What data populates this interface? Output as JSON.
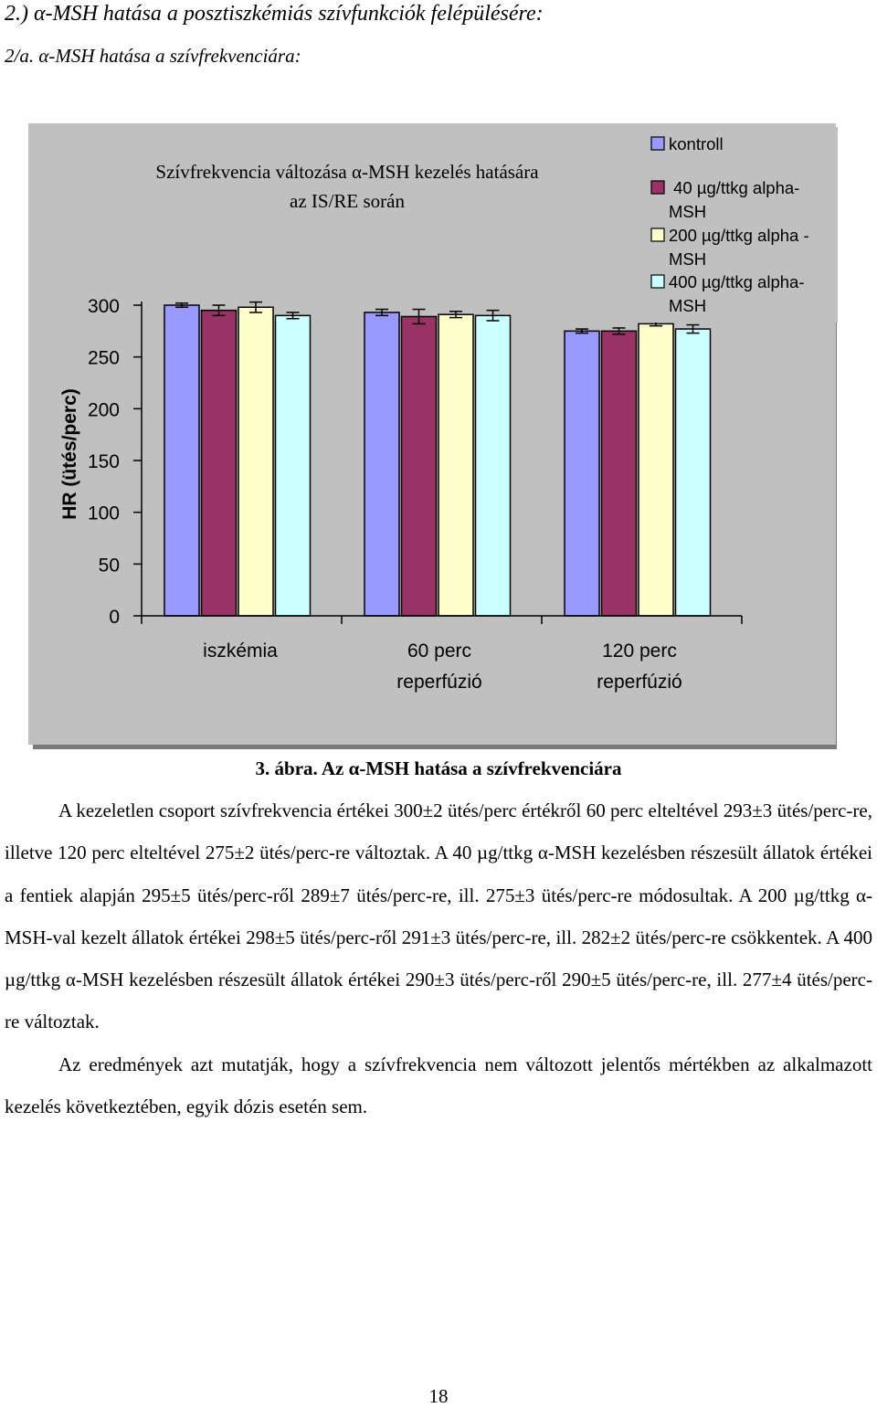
{
  "heading": "2.) α-MSH hatása a posztiszkémiás szívfunkciók felépülésére:",
  "subheading": "2/a. α-MSH hatása a szívfrekvenciára:",
  "chart_data": {
    "type": "bar",
    "title_line1": "Szívfrekvencia változása α-MSH kezelés hatására",
    "title_line2": "az IS/RE során",
    "ylabel": "HR (ütés/perc)",
    "xlabel": "",
    "ylim": [
      0,
      300
    ],
    "yticks": [
      0,
      50,
      100,
      150,
      200,
      250,
      300
    ],
    "categories": [
      [
        "iszkémia"
      ],
      [
        "60 perc",
        "reperfúzió"
      ],
      [
        "120 perc",
        "reperfúzió"
      ]
    ],
    "legend_position": "top-right",
    "grid": false,
    "series": [
      {
        "name_lines": [
          "kontroll"
        ],
        "color": "#9999FF",
        "values": [
          300,
          293,
          275
        ],
        "errors": [
          2,
          3,
          2
        ]
      },
      {
        "name_lines": [
          " 40 µg/ttkg alpha-",
          "MSH"
        ],
        "color": "#993366",
        "values": [
          295,
          289,
          275
        ],
        "errors": [
          5,
          7,
          3
        ]
      },
      {
        "name_lines": [
          "200 µg/ttkg alpha -",
          "MSH"
        ],
        "color": "#FFFFCC",
        "values": [
          298,
          291,
          282
        ],
        "errors": [
          5,
          3,
          2
        ]
      },
      {
        "name_lines": [
          "400 µg/ttkg alpha-",
          "MSH"
        ],
        "color": "#CCFFFF",
        "values": [
          290,
          290,
          277
        ],
        "errors": [
          3,
          5,
          4
        ]
      }
    ]
  },
  "caption": {
    "label": "3. ábra.",
    "text": " Az α-MSH hatása a szívfrekvenciára"
  },
  "paragraph1": "A kezeletlen csoport szívfrekvencia értékei 300±2 ütés/perc értékről 60 perc elteltével 293±3 ütés/perc-re, illetve 120 perc elteltével 275±2 ütés/perc-re változtak. A 40 µg/ttkg α-MSH kezelésben részesült állatok értékei a fentiek alapján 295±5 ütés/perc-ről 289±7 ütés/perc-re, ill. 275±3 ütés/perc-re módosultak. A 200 µg/ttkg α-MSH-val kezelt állatok értékei 298±5 ütés/perc-ről 291±3 ütés/perc-re, ill. 282±2 ütés/perc-re csökkentek. A 400 µg/ttkg α-MSH kezelésben részesült állatok értékei 290±3 ütés/perc-ről 290±5 ütés/perc-re, ill. 277±4 ütés/perc-re változtak.",
  "paragraph2": "Az eredmények azt mutatják, hogy a szívfrekvencia nem változott jelentős mértékben az alkalmazott kezelés következtében, egyik dózis esetén sem.",
  "page_number": "18"
}
